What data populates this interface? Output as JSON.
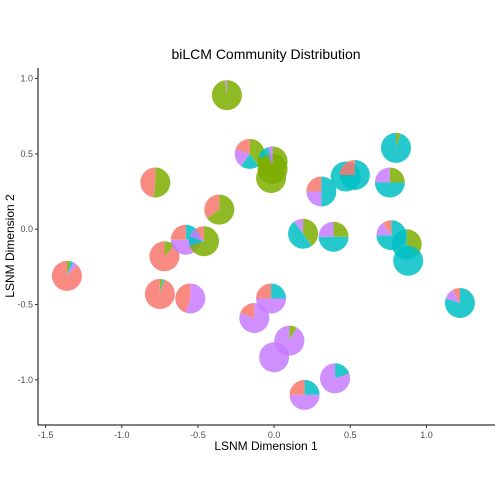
{
  "chart_data": {
    "type": "scatter",
    "title": "biLCM Community Distribution",
    "xlabel": "LSNM Dimension 1",
    "ylabel": "LSNM Dimension 2",
    "xlim": [
      -1.55,
      1.45
    ],
    "ylim": [
      -1.3,
      1.07
    ],
    "x_ticks": [
      -1.5,
      -1.0,
      -0.5,
      0.0,
      0.5,
      1.0
    ],
    "x_tick_labels": [
      "-1.5",
      "-1.0",
      "-0.5",
      "0.0",
      "0.5",
      "1.0"
    ],
    "y_ticks": [
      1.0,
      0.5,
      0.0,
      -0.5,
      -1.0
    ],
    "y_tick_labels": [
      "1.0",
      "0.5",
      "0.0",
      "-0.5",
      "-1.0"
    ],
    "grid": false,
    "legend": "none",
    "colors": [
      "#F8766D",
      "#7CAE00",
      "#00BFC4",
      "#C77CFF"
    ],
    "points": [
      {
        "x": -1.36,
        "y": -0.31,
        "shares": [
          0.88,
          0.04,
          0.03,
          0.05
        ]
      },
      {
        "x": -0.78,
        "y": 0.31,
        "shares": [
          0.48,
          0.52,
          0.0,
          0.0
        ]
      },
      {
        "x": -0.75,
        "y": -0.43,
        "shares": [
          0.95,
          0.03,
          0.02,
          0.0
        ]
      },
      {
        "x": -0.72,
        "y": -0.18,
        "shares": [
          0.88,
          0.12,
          0.0,
          0.0
        ]
      },
      {
        "x": -0.58,
        "y": -0.07,
        "shares": [
          0.25,
          0.0,
          0.25,
          0.5
        ]
      },
      {
        "x": -0.55,
        "y": -0.46,
        "shares": [
          0.45,
          0.0,
          0.0,
          0.55
        ]
      },
      {
        "x": -0.46,
        "y": -0.08,
        "shares": [
          0.1,
          0.7,
          0.1,
          0.1
        ]
      },
      {
        "x": -0.36,
        "y": 0.13,
        "shares": [
          0.35,
          0.65,
          0.0,
          0.0
        ]
      },
      {
        "x": -0.31,
        "y": 0.89,
        "shares": [
          0.0,
          0.98,
          0.0,
          0.02
        ]
      },
      {
        "x": -0.16,
        "y": 0.5,
        "shares": [
          0.2,
          0.4,
          0.2,
          0.2
        ]
      },
      {
        "x": -0.13,
        "y": -0.59,
        "shares": [
          0.2,
          0.0,
          0.0,
          0.8
        ]
      },
      {
        "x": -0.02,
        "y": -0.46,
        "shares": [
          0.25,
          0.0,
          0.25,
          0.5
        ]
      },
      {
        "x": -0.01,
        "y": 0.45,
        "shares": [
          0.0,
          0.8,
          0.15,
          0.05
        ]
      },
      {
        "x": 0.0,
        "y": -0.85,
        "shares": [
          0.0,
          0.0,
          0.0,
          1.0
        ]
      },
      {
        "x": -0.01,
        "y": 0.4,
        "shares": [
          0.0,
          0.96,
          0.0,
          0.04
        ]
      },
      {
        "x": -0.02,
        "y": 0.34,
        "shares": [
          0.0,
          1.0,
          0.0,
          0.0
        ]
      },
      {
        "x": 0.1,
        "y": -0.74,
        "shares": [
          0.0,
          0.08,
          0.0,
          0.92
        ]
      },
      {
        "x": 0.19,
        "y": -0.03,
        "shares": [
          0.0,
          0.4,
          0.5,
          0.1
        ]
      },
      {
        "x": 0.2,
        "y": -1.1,
        "shares": [
          0.25,
          0.0,
          0.25,
          0.5
        ]
      },
      {
        "x": 0.31,
        "y": 0.25,
        "shares": [
          0.25,
          0.0,
          0.5,
          0.25
        ]
      },
      {
        "x": 0.39,
        "y": -0.05,
        "shares": [
          0.0,
          0.25,
          0.5,
          0.25
        ]
      },
      {
        "x": 0.4,
        "y": -0.99,
        "shares": [
          0.0,
          0.0,
          0.2,
          0.8
        ]
      },
      {
        "x": 0.47,
        "y": 0.35,
        "shares": [
          0.0,
          0.0,
          1.0,
          0.0
        ]
      },
      {
        "x": 0.53,
        "y": 0.36,
        "shares": [
          0.25,
          0.0,
          0.75,
          0.0
        ]
      },
      {
        "x": 0.76,
        "y": 0.31,
        "shares": [
          0.0,
          0.25,
          0.5,
          0.25
        ]
      },
      {
        "x": 0.77,
        "y": -0.04,
        "shares": [
          0.1,
          0.0,
          0.75,
          0.15
        ]
      },
      {
        "x": 0.8,
        "y": 0.54,
        "shares": [
          0.0,
          0.05,
          0.95,
          0.0
        ]
      },
      {
        "x": 0.87,
        "y": -0.1,
        "shares": [
          0.0,
          0.4,
          0.6,
          0.0
        ]
      },
      {
        "x": 0.88,
        "y": -0.21,
        "shares": [
          0.0,
          0.0,
          1.0,
          0.0
        ]
      },
      {
        "x": 1.22,
        "y": -0.49,
        "shares": [
          0.08,
          0.0,
          0.8,
          0.12
        ]
      }
    ]
  }
}
